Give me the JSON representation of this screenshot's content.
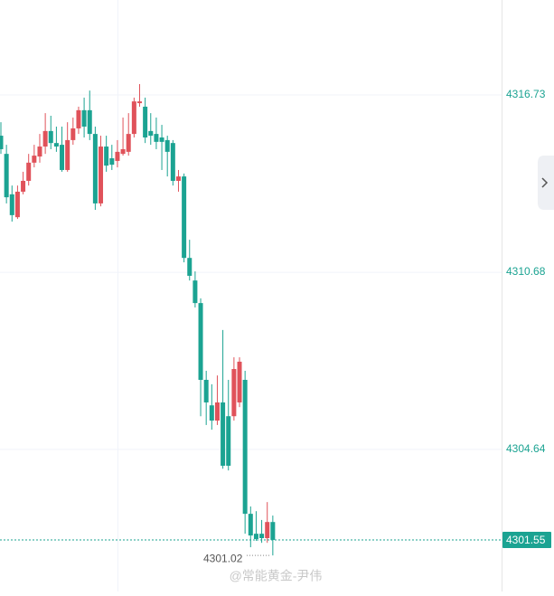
{
  "chart_data": {
    "type": "candlestick",
    "open": [
      4315.34,
      4314.72,
      4313.34,
      4312.56,
      4313.43,
      4313.8,
      4314.42,
      4314.63,
      4314.97,
      4315.5,
      4315.09,
      4315.03,
      4314.17,
      4315.19,
      4315.59,
      4316.21,
      4316.21,
      4315.4,
      4313.03,
      4314.97,
      4314.57,
      4314.48,
      4314.72,
      4314.79,
      4315.4,
      4316.45,
      4316.33,
      4315.5,
      4315.4,
      4315.28,
      4315.19,
      4315.09,
      4313.8,
      4313.95,
      4311.17,
      4310.4,
      4309.63,
      4307.01,
      4306.14,
      4305.62,
      4306.24,
      4305.77,
      4305.77,
      4306.24,
      4307.01,
      4302.44,
      4301.76,
      4301.76,
      4301.61,
      4302.16
    ],
    "high": [
      4315.8,
      4315.03,
      4313.64,
      4313.64,
      4314.11,
      4314.72,
      4315.03,
      4315.4,
      4316.11,
      4316.02,
      4315.65,
      4315.65,
      4315.8,
      4315.96,
      4316.33,
      4316.64,
      4316.88,
      4315.65,
      4315.34,
      4315.34,
      4315.03,
      4315.19,
      4315.96,
      4316.11,
      4316.64,
      4317.1,
      4316.64,
      4316.11,
      4315.96,
      4315.71,
      4315.34,
      4315.19,
      4314.17,
      4314.05,
      4311.79,
      4310.71,
      4309.79,
      4307.32,
      4306.86,
      4307.16,
      4308.71,
      4307.01,
      4307.78,
      4307.78,
      4307.32,
      4302.69,
      4302.53,
      4302.23,
      4302.84,
      4302.38
    ],
    "low": [
      4314.72,
      4313.03,
      4312.41,
      4312.5,
      4313.34,
      4313.64,
      4314.26,
      4314.42,
      4314.72,
      4314.88,
      4314.79,
      4314.11,
      4314.11,
      4315.03,
      4315.4,
      4315.28,
      4315.19,
      4312.81,
      4312.93,
      4314.11,
      4314.17,
      4314.26,
      4314.66,
      4314.66,
      4315.28,
      4316.33,
      4315.09,
      4315.03,
      4314.88,
      4314.17,
      4313.95,
      4313.64,
      4313.43,
      4311.02,
      4310.4,
      4309.48,
      4305.77,
      4305.47,
      4305.31,
      4305.47,
      4303.98,
      4303.92,
      4305.62,
      4306.08,
      4301.76,
      4301.3,
      4301.52,
      4301.45,
      4301.45,
      4301.02
    ],
    "close": [
      4314.88,
      4313.24,
      4312.63,
      4313.43,
      4313.8,
      4314.42,
      4314.66,
      4314.97,
      4315.5,
      4315.09,
      4314.97,
      4314.17,
      4315.19,
      4315.59,
      4316.21,
      4315.65,
      4315.4,
      4313.03,
      4314.97,
      4314.32,
      4314.35,
      4314.79,
      4314.88,
      4315.4,
      4316.51,
      4316.51,
      4315.28,
      4315.34,
      4315.13,
      4315.13,
      4314.79,
      4313.8,
      4313.95,
      4311.17,
      4310.56,
      4309.63,
      4307.01,
      4306.24,
      4305.62,
      4306.24,
      4304.08,
      4304.08,
      4307.38,
      4307.63,
      4302.44,
      4301.7,
      4301.58,
      4301.61,
      4302.16,
      4301.55
    ],
    "up_color": "#e0525a",
    "down_color": "#1ba392",
    "ylim": [
      4299.79,
      4319.97
    ],
    "yticks": [
      4304.64,
      4310.68,
      4316.73
    ],
    "grid": true,
    "last_price": 4301.55,
    "low_marker": 4301.02,
    "watermark": "@常能黄金-尹伟"
  }
}
